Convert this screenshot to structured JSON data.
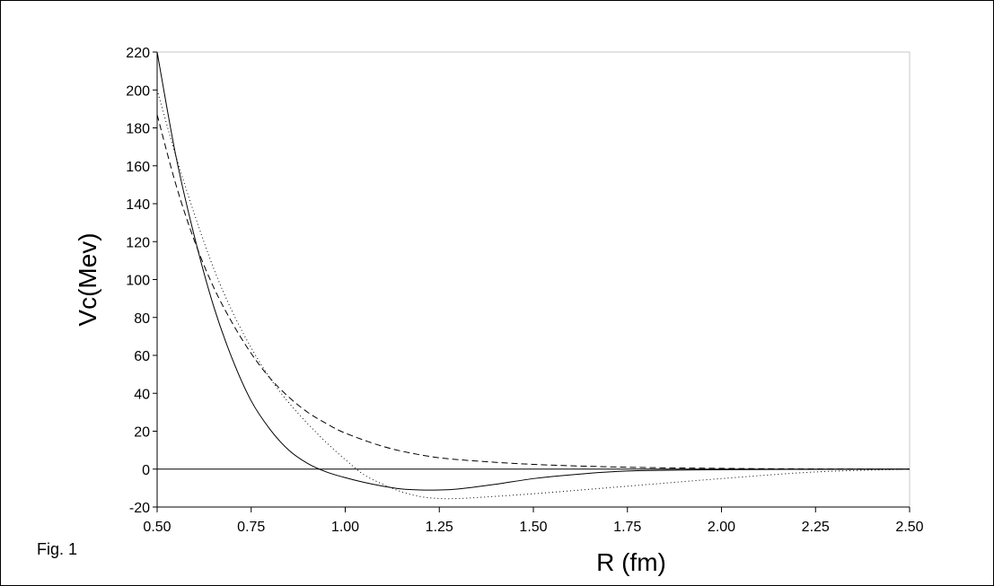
{
  "figure_label": "Fig. 1",
  "chart_data": {
    "type": "line",
    "title": "",
    "xlabel": "R  (fm)",
    "ylabel": "Vc(Mev)",
    "xlim": [
      0.5,
      2.5
    ],
    "ylim": [
      -20,
      220
    ],
    "x_ticks": [
      "0.50",
      "0.75",
      "1.00",
      "1.25",
      "1.50",
      "1.75",
      "2.00",
      "2.25",
      "2.50"
    ],
    "y_ticks": [
      "-20",
      "0",
      "20",
      "40",
      "60",
      "80",
      "100",
      "120",
      "140",
      "160",
      "180",
      "200",
      "220"
    ],
    "grid": false,
    "legend": "none",
    "series": [
      {
        "style": "solid",
        "x": [
          0.5,
          0.55,
          0.6,
          0.65,
          0.7,
          0.75,
          0.8,
          0.85,
          0.9,
          0.95,
          1.0,
          1.05,
          1.1,
          1.15,
          1.2,
          1.25,
          1.3,
          1.4,
          1.5,
          1.6,
          1.75,
          2.0,
          2.25,
          2.5
        ],
        "y": [
          220,
          165,
          122,
          86,
          58,
          36,
          21,
          10,
          3,
          -1.5,
          -4.5,
          -7,
          -9,
          -10.5,
          -11,
          -11,
          -10.5,
          -8,
          -5,
          -3,
          -1,
          -0.3,
          -0.1,
          0
        ]
      },
      {
        "style": "dashed",
        "x": [
          0.5,
          0.55,
          0.6,
          0.65,
          0.7,
          0.75,
          0.8,
          0.85,
          0.9,
          0.95,
          1.0,
          1.1,
          1.2,
          1.3,
          1.5,
          1.75,
          2.0,
          2.25,
          2.5
        ],
        "y": [
          187,
          150,
          120,
          96,
          77,
          61,
          48,
          38,
          30,
          24,
          19,
          12,
          7.5,
          5,
          2.5,
          1,
          0.4,
          0.1,
          0
        ]
      },
      {
        "style": "dotted",
        "x": [
          0.5,
          0.55,
          0.6,
          0.65,
          0.7,
          0.75,
          0.8,
          0.85,
          0.9,
          0.95,
          1.0,
          1.05,
          1.1,
          1.15,
          1.2,
          1.25,
          1.3,
          1.35,
          1.5,
          1.75,
          2.0,
          2.25,
          2.5
        ],
        "y": [
          200,
          165,
          134,
          106,
          83,
          64,
          48,
          35,
          24,
          14,
          5,
          -3,
          -8,
          -12,
          -14.5,
          -15.5,
          -15.5,
          -15,
          -13,
          -9,
          -5,
          -1.5,
          0
        ]
      }
    ]
  }
}
